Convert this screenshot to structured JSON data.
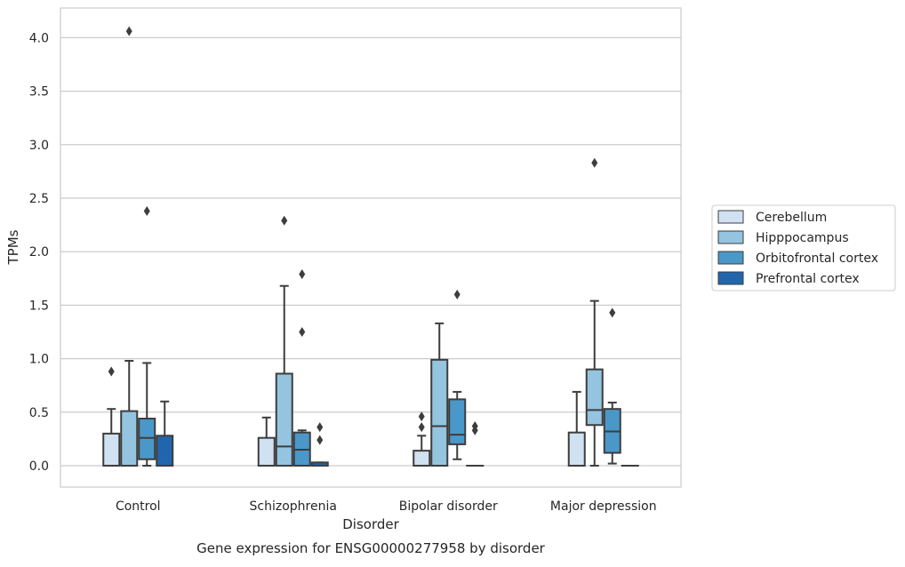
{
  "chart_data": {
    "type": "box",
    "title": "",
    "caption": "Gene expression for ENSG00000277958 by disorder",
    "xlabel": "Disorder",
    "ylabel": "TPMs",
    "ylim": [
      -0.2,
      4.27
    ],
    "yticks": [
      "0.0",
      "0.5",
      "1.0",
      "1.5",
      "2.0",
      "2.5",
      "3.0",
      "3.5",
      "4.0"
    ],
    "grid": "horizontal",
    "legend_position": "right",
    "categories": [
      "Control",
      "Schizophrenia",
      "Bipolar disorder",
      "Major depression"
    ],
    "series": [
      {
        "name": "Cerebellum",
        "color": "#d0e1f2",
        "boxes": [
          {
            "whislo": 0.0,
            "q1": 0.0,
            "med": 0.0,
            "q3": 0.3,
            "whishi": 0.53,
            "fliers": [
              0.88
            ]
          },
          {
            "whislo": 0.0,
            "q1": 0.0,
            "med": 0.0,
            "q3": 0.26,
            "whishi": 0.45,
            "fliers": []
          },
          {
            "whislo": 0.0,
            "q1": 0.0,
            "med": 0.0,
            "q3": 0.14,
            "whishi": 0.28,
            "fliers": [
              0.36,
              0.46
            ]
          },
          {
            "whislo": 0.0,
            "q1": 0.0,
            "med": 0.0,
            "q3": 0.31,
            "whishi": 0.69,
            "fliers": []
          }
        ]
      },
      {
        "name": "Hipppocampus",
        "color": "#94c4df",
        "boxes": [
          {
            "whislo": 0.0,
            "q1": 0.0,
            "med": 0.0,
            "q3": 0.51,
            "whishi": 0.98,
            "fliers": [
              4.06
            ]
          },
          {
            "whislo": 0.0,
            "q1": 0.0,
            "med": 0.18,
            "q3": 0.86,
            "whishi": 1.68,
            "fliers": [
              2.29
            ]
          },
          {
            "whislo": 0.0,
            "q1": 0.0,
            "med": 0.37,
            "q3": 0.99,
            "whishi": 1.33,
            "fliers": []
          },
          {
            "whislo": 0.0,
            "q1": 0.38,
            "med": 0.52,
            "q3": 0.9,
            "whishi": 1.54,
            "fliers": [
              2.83
            ]
          }
        ]
      },
      {
        "name": "Orbitofrontal cortex",
        "color": "#4a98c9",
        "boxes": [
          {
            "whislo": 0.0,
            "q1": 0.06,
            "med": 0.26,
            "q3": 0.44,
            "whishi": 0.96,
            "fliers": [
              2.38
            ]
          },
          {
            "whislo": 0.0,
            "q1": 0.0,
            "med": 0.15,
            "q3": 0.31,
            "whishi": 0.33,
            "fliers": [
              1.25,
              1.79
            ]
          },
          {
            "whislo": 0.06,
            "q1": 0.2,
            "med": 0.29,
            "q3": 0.62,
            "whishi": 0.69,
            "fliers": [
              1.6
            ]
          },
          {
            "whislo": 0.02,
            "q1": 0.12,
            "med": 0.32,
            "q3": 0.53,
            "whishi": 0.59,
            "fliers": [
              1.43
            ]
          }
        ]
      },
      {
        "name": "Prefrontal cortex",
        "color": "#2166ac",
        "boxes": [
          {
            "whislo": 0.0,
            "q1": 0.0,
            "med": 0.0,
            "q3": 0.28,
            "whishi": 0.6,
            "fliers": []
          },
          {
            "whislo": 0.0,
            "q1": 0.0,
            "med": 0.0,
            "q3": 0.03,
            "whishi": 0.03,
            "fliers": [
              0.24,
              0.36
            ]
          },
          {
            "whislo": 0.0,
            "q1": 0.0,
            "med": 0.0,
            "q3": 0.0,
            "whishi": 0.0,
            "fliers": [
              0.33,
              0.37
            ]
          },
          {
            "whislo": 0.0,
            "q1": 0.0,
            "med": 0.0,
            "q3": 0.0,
            "whishi": 0.0,
            "fliers": []
          }
        ]
      }
    ]
  }
}
